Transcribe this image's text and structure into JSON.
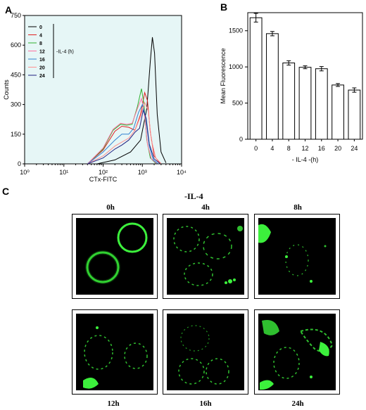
{
  "panels": {
    "a": "A",
    "b": "B",
    "c": "C"
  },
  "chart_data": [
    {
      "type": "line",
      "x_scale": "log",
      "xlabel": "CTx-FITC",
      "ylabel": "Counts",
      "xlim": [
        1,
        10000
      ],
      "ylim": [
        0,
        750
      ],
      "x_tick_labels": [
        "10⁰",
        "10¹",
        "10²",
        "10³",
        "10⁴"
      ],
      "y_ticks": [
        0,
        150,
        300,
        450,
        600,
        750
      ],
      "y_tick_labels": [
        "0",
        "150",
        "300",
        "450",
        "600",
        "750"
      ],
      "legend_note": "-IL-4 (h)",
      "legend_placement": "top-left",
      "series": [
        {
          "name": "0",
          "color": "#000000",
          "x": [
            70,
            200,
            500,
            900,
            1300,
            1600,
            1800,
            2050,
            2400,
            3000,
            4000
          ],
          "y": [
            0,
            20,
            60,
            120,
            280,
            520,
            640,
            560,
            250,
            60,
            5
          ]
        },
        {
          "name": "4",
          "color": "#e02020",
          "x": [
            40,
            100,
            200,
            300,
            450,
            650,
            900,
            1150,
            1350,
            1600,
            2000,
            2800
          ],
          "y": [
            0,
            70,
            165,
            190,
            185,
            170,
            250,
            360,
            320,
            160,
            40,
            3
          ]
        },
        {
          "name": "8",
          "color": "#30b030",
          "x": [
            40,
            100,
            180,
            280,
            400,
            550,
            750,
            950,
            1100,
            1300,
            1600,
            2200
          ],
          "y": [
            0,
            75,
            170,
            200,
            195,
            200,
            290,
            380,
            300,
            120,
            30,
            2
          ]
        },
        {
          "name": "12",
          "color": "#ff70a0",
          "x": [
            40,
            100,
            180,
            280,
            400,
            550,
            750,
            950,
            1100,
            1350,
            1700,
            2300
          ],
          "y": [
            0,
            80,
            175,
            205,
            200,
            205,
            280,
            330,
            270,
            100,
            25,
            2
          ]
        },
        {
          "name": "16",
          "color": "#3080d0",
          "x": [
            40,
            100,
            200,
            300,
            450,
            600,
            800,
            1000,
            1200,
            1500,
            1900,
            2500
          ],
          "y": [
            0,
            60,
            120,
            150,
            150,
            180,
            260,
            300,
            240,
            90,
            20,
            1
          ]
        },
        {
          "name": "20",
          "color": "#ff9090",
          "x": [
            40,
            100,
            200,
            300,
            450,
            650,
            900,
            1150,
            1400,
            1700,
            2200,
            3000
          ],
          "y": [
            0,
            40,
            90,
            110,
            130,
            170,
            240,
            310,
            270,
            120,
            30,
            2
          ]
        },
        {
          "name": "24",
          "color": "#202080",
          "x": [
            40,
            100,
            200,
            300,
            450,
            650,
            850,
            1050,
            1250,
            1500,
            2000,
            2800
          ],
          "y": [
            0,
            30,
            75,
            95,
            120,
            160,
            180,
            270,
            230,
            100,
            25,
            2
          ]
        }
      ]
    },
    {
      "type": "bar",
      "xlabel": "- IL-4 -(h)",
      "ylabel": "Mean Fluorescence",
      "categories": [
        "0",
        "4",
        "8",
        "12",
        "16",
        "20",
        "24"
      ],
      "values": [
        1680,
        1460,
        1055,
        995,
        975,
        750,
        680
      ],
      "errors": [
        60,
        30,
        30,
        20,
        30,
        20,
        30
      ],
      "ylim": [
        0,
        1750
      ],
      "y_ticks": [
        0,
        500,
        1000,
        1500
      ],
      "bar_color": "#ffffff"
    }
  ],
  "panel_c": {
    "title": "-IL-4",
    "time_labels": [
      "0h",
      "4h",
      "8h",
      "12h",
      "16h",
      "24h"
    ]
  }
}
